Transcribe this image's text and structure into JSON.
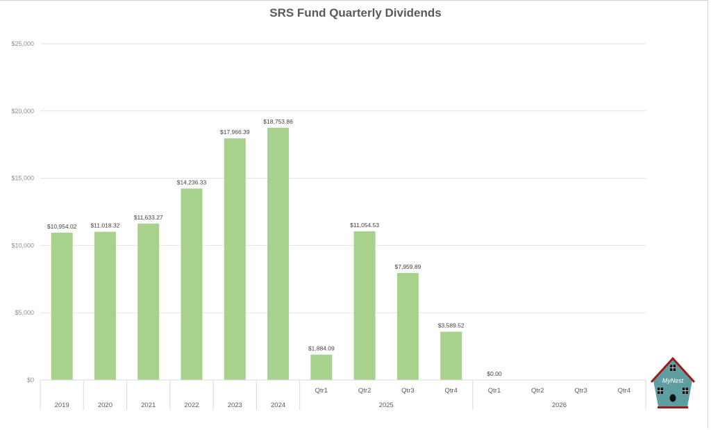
{
  "chart_data": {
    "type": "bar",
    "title": "SRS Fund Quarterly Dividends",
    "categories": [
      {
        "label": "2019",
        "group": ""
      },
      {
        "label": "2020",
        "group": ""
      },
      {
        "label": "2021",
        "group": ""
      },
      {
        "label": "2022",
        "group": ""
      },
      {
        "label": "2023",
        "group": ""
      },
      {
        "label": "2024",
        "group": ""
      },
      {
        "label": "Qtr1",
        "group": "2025"
      },
      {
        "label": "Qtr2",
        "group": "2025"
      },
      {
        "label": "Qtr3",
        "group": "2025"
      },
      {
        "label": "Qtr4",
        "group": "2025"
      },
      {
        "label": "Qtr1",
        "group": "2026"
      },
      {
        "label": "Qtr2",
        "group": "2026"
      },
      {
        "label": "Qtr3",
        "group": "2026"
      },
      {
        "label": "Qtr4",
        "group": "2026"
      }
    ],
    "groups": [
      "2025",
      "2026"
    ],
    "values": [
      10954.02,
      11018.32,
      11633.27,
      14236.33,
      17966.39,
      18753.86,
      1884.09,
      11054.53,
      7959.89,
      3589.52,
      0,
      null,
      null,
      null
    ],
    "data_labels": [
      "$10,954.02",
      "$11,018.32",
      "$11,633.27",
      "$14,236.33",
      "$17,966.39",
      "$18,753.86",
      "$1,884.09",
      "$11,054.53",
      "$7,959.89",
      "$3,589.52",
      "$0.00",
      "",
      "",
      ""
    ],
    "ylim": [
      0,
      25000
    ],
    "yticks": [
      0,
      5000,
      10000,
      15000,
      20000,
      25000
    ],
    "ytick_labels": [
      "$0",
      "$5,000",
      "$10,000",
      "$15,000",
      "$20,000",
      "$25,000"
    ],
    "xlabel": "",
    "ylabel": "",
    "grid": true,
    "legend": "none",
    "bar_color": "#a9d18e"
  },
  "logo": {
    "text": "MyNest",
    "icon": "birdhouse-icon",
    "body_color": "#5f9ea0",
    "roof_color": "#9b1c1c"
  }
}
